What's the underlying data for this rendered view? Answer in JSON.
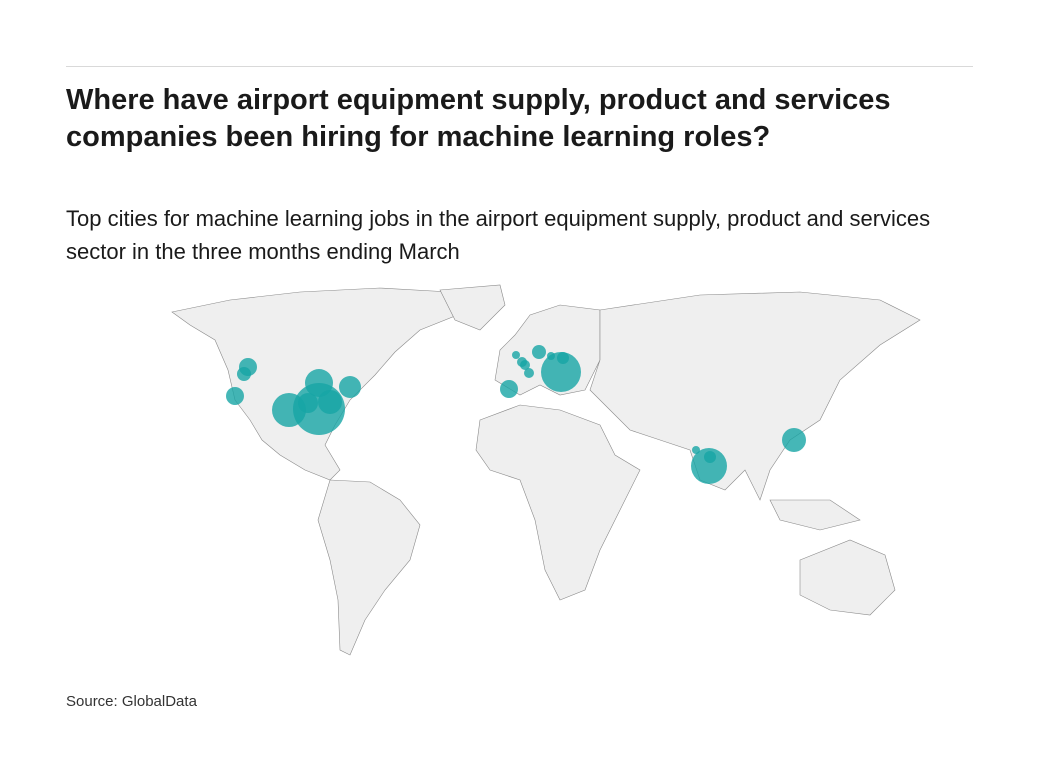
{
  "title": "Where have airport equipment supply, product and services companies been hiring for machine learning roles?",
  "subtitle": "Top cities for machine learning jobs in the airport equipment supply, product and services sector in the three months ending March",
  "source": "Source: GlobalData",
  "colors": {
    "bubble": "#16a5a5",
    "land": "#efefef",
    "border": "#7a7a7a"
  },
  "bubble_region_counts": {
    "north_america": 9,
    "europe": 9,
    "asia": 4
  }
}
